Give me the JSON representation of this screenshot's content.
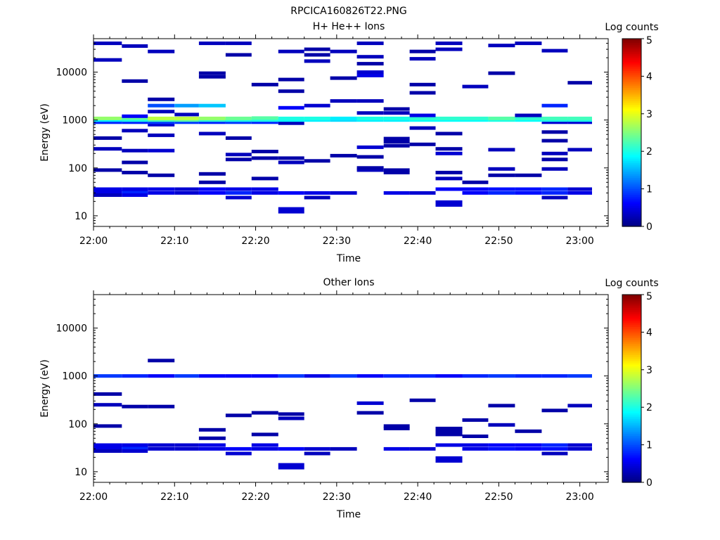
{
  "figure_title": "RPCICA160826T22.PNG",
  "chart_data": [
    {
      "type": "heatmap",
      "title": "H+ He++ Ions",
      "xlabel": "Time",
      "ylabel": "Energy (eV)",
      "x_ticks": [
        "22:00",
        "22:10",
        "22:20",
        "22:30",
        "22:40",
        "22:50",
        "23:00"
      ],
      "x_range_minutes": [
        0,
        63.5
      ],
      "y_scale": "log",
      "y_ticks": [
        10,
        100,
        1000,
        10000
      ],
      "y_range": [
        6,
        50000
      ],
      "colorbar": {
        "label": "Log counts",
        "ticks": [
          0,
          1,
          2,
          3,
          4,
          5
        ],
        "range": [
          0,
          5
        ],
        "colormap": "jet"
      },
      "time_bins_minutes": [
        0,
        3.5,
        6.7,
        10,
        13,
        16.3,
        19.5,
        22.8,
        26,
        29.2,
        32.5,
        35.8,
        39,
        42.2,
        45.5,
        48.7,
        52,
        55.3,
        58.5,
        61.5
      ],
      "cells": [
        [
          0,
          27,
          0.3
        ],
        [
          0,
          32,
          0.5
        ],
        [
          0,
          36,
          0.5
        ],
        [
          0,
          90,
          0.2
        ],
        [
          0,
          250,
          0.3
        ],
        [
          0,
          420,
          0.2
        ],
        [
          0,
          900,
          0.8
        ],
        [
          0,
          1000,
          1.8
        ],
        [
          0,
          1080,
          2.6
        ],
        [
          0,
          18000,
          0.3
        ],
        [
          0,
          40000,
          0.3
        ],
        [
          1,
          27,
          0.5
        ],
        [
          1,
          32,
          0.8
        ],
        [
          1,
          36,
          0.5
        ],
        [
          1,
          80,
          0.2
        ],
        [
          1,
          130,
          0.2
        ],
        [
          1,
          230,
          0.3
        ],
        [
          1,
          600,
          0.3
        ],
        [
          1,
          900,
          0.8
        ],
        [
          1,
          1000,
          2.0
        ],
        [
          1,
          1100,
          2.4
        ],
        [
          1,
          1200,
          0.6
        ],
        [
          1,
          6500,
          0.2
        ],
        [
          1,
          35000,
          0.3
        ],
        [
          2,
          30,
          0.5
        ],
        [
          2,
          36,
          0.5
        ],
        [
          2,
          70,
          0.2
        ],
        [
          2,
          230,
          0.4
        ],
        [
          2,
          480,
          0.3
        ],
        [
          2,
          800,
          0.4
        ],
        [
          2,
          900,
          0.9
        ],
        [
          2,
          1000,
          2.2
        ],
        [
          2,
          1080,
          2.8
        ],
        [
          2,
          1500,
          0.3
        ],
        [
          2,
          2000,
          1.0
        ],
        [
          2,
          2700,
          0.2
        ],
        [
          2,
          27000,
          0.3
        ],
        [
          3,
          30,
          0.4
        ],
        [
          3,
          36,
          0.4
        ],
        [
          3,
          900,
          0.9
        ],
        [
          3,
          1000,
          2.3
        ],
        [
          3,
          1080,
          2.8
        ],
        [
          3,
          1300,
          0.3
        ],
        [
          3,
          2000,
          1.4
        ],
        [
          4,
          30,
          0.6
        ],
        [
          4,
          36,
          0.6
        ],
        [
          4,
          50,
          0.2
        ],
        [
          4,
          75,
          0.2
        ],
        [
          4,
          520,
          0.3
        ],
        [
          4,
          900,
          0.8
        ],
        [
          4,
          1000,
          2.1
        ],
        [
          4,
          1080,
          2.6
        ],
        [
          4,
          2000,
          1.6
        ],
        [
          4,
          8000,
          0.2
        ],
        [
          4,
          9500,
          0.2
        ],
        [
          4,
          40000,
          0.3
        ],
        [
          5,
          24,
          0.4
        ],
        [
          5,
          30,
          0.8
        ],
        [
          5,
          36,
          0.5
        ],
        [
          5,
          150,
          0.2
        ],
        [
          5,
          190,
          0.3
        ],
        [
          5,
          420,
          0.2
        ],
        [
          5,
          900,
          0.9
        ],
        [
          5,
          1000,
          2.0
        ],
        [
          5,
          1080,
          2.4
        ],
        [
          5,
          23000,
          0.2
        ],
        [
          5,
          40000,
          0.3
        ],
        [
          6,
          30,
          0.5
        ],
        [
          6,
          36,
          0.5
        ],
        [
          6,
          60,
          0.2
        ],
        [
          6,
          160,
          0.2
        ],
        [
          6,
          220,
          0.2
        ],
        [
          6,
          900,
          0.8
        ],
        [
          6,
          1000,
          2.0
        ],
        [
          6,
          1100,
          2.3
        ],
        [
          6,
          5500,
          0.2
        ],
        [
          7,
          13,
          0.4
        ],
        [
          7,
          30,
          0.6
        ],
        [
          7,
          130,
          0.3
        ],
        [
          7,
          160,
          0.2
        ],
        [
          7,
          860,
          0.3
        ],
        [
          7,
          1000,
          1.9
        ],
        [
          7,
          1080,
          2.0
        ],
        [
          7,
          1800,
          0.6
        ],
        [
          7,
          4000,
          0.2
        ],
        [
          7,
          7000,
          0.2
        ],
        [
          7,
          27000,
          0.3
        ],
        [
          8,
          24,
          0.3
        ],
        [
          8,
          30,
          0.5
        ],
        [
          8,
          140,
          0.2
        ],
        [
          8,
          1000,
          1.8
        ],
        [
          8,
          1080,
          2.0
        ],
        [
          8,
          2000,
          0.4
        ],
        [
          8,
          17000,
          0.3
        ],
        [
          8,
          23000,
          0.2
        ],
        [
          8,
          30000,
          0.2
        ],
        [
          9,
          30,
          0.4
        ],
        [
          9,
          180,
          0.2
        ],
        [
          9,
          1000,
          1.7
        ],
        [
          9,
          1080,
          1.8
        ],
        [
          9,
          2500,
          0.3
        ],
        [
          9,
          7500,
          0.2
        ],
        [
          9,
          27000,
          0.3
        ],
        [
          10,
          90,
          0.3
        ],
        [
          10,
          100,
          0.2
        ],
        [
          10,
          170,
          0.2
        ],
        [
          10,
          270,
          0.4
        ],
        [
          10,
          1000,
          1.8
        ],
        [
          10,
          1080,
          2.0
        ],
        [
          10,
          1400,
          0.3
        ],
        [
          10,
          2500,
          0.3
        ],
        [
          10,
          8500,
          0.5
        ],
        [
          10,
          10000,
          0.4
        ],
        [
          10,
          15000,
          0.2
        ],
        [
          10,
          21000,
          0.3
        ],
        [
          10,
          40000,
          0.3
        ],
        [
          11,
          30,
          0.5
        ],
        [
          11,
          80,
          0.2
        ],
        [
          11,
          90,
          0.2
        ],
        [
          11,
          290,
          0.2
        ],
        [
          11,
          350,
          0.2
        ],
        [
          11,
          410,
          0.2
        ],
        [
          11,
          1000,
          1.8
        ],
        [
          11,
          1080,
          2.0
        ],
        [
          11,
          1400,
          0.3
        ],
        [
          11,
          1700,
          0.2
        ],
        [
          12,
          30,
          0.4
        ],
        [
          12,
          310,
          0.2
        ],
        [
          12,
          680,
          0.3
        ],
        [
          12,
          1000,
          1.9
        ],
        [
          12,
          1080,
          2.1
        ],
        [
          12,
          1250,
          0.5
        ],
        [
          12,
          3700,
          0.2
        ],
        [
          12,
          5500,
          0.2
        ],
        [
          12,
          19000,
          0.3
        ],
        [
          12,
          27000,
          0.2
        ],
        [
          13,
          18,
          0.4
        ],
        [
          13,
          36,
          0.6
        ],
        [
          13,
          60,
          0.3
        ],
        [
          13,
          80,
          0.2
        ],
        [
          13,
          200,
          0.4
        ],
        [
          13,
          250,
          0.2
        ],
        [
          13,
          520,
          0.2
        ],
        [
          13,
          1000,
          1.9
        ],
        [
          13,
          1080,
          2.1
        ],
        [
          13,
          30000,
          0.3
        ],
        [
          13,
          40000,
          0.3
        ],
        [
          14,
          30,
          0.6
        ],
        [
          14,
          36,
          0.6
        ],
        [
          14,
          50,
          0.2
        ],
        [
          14,
          1000,
          1.9
        ],
        [
          14,
          1080,
          2.1
        ],
        [
          14,
          5000,
          0.3
        ],
        [
          15,
          30,
          0.8
        ],
        [
          15,
          36,
          0.7
        ],
        [
          15,
          70,
          0.2
        ],
        [
          15,
          95,
          0.3
        ],
        [
          15,
          240,
          0.3
        ],
        [
          15,
          1000,
          2.0
        ],
        [
          15,
          1080,
          2.3
        ],
        [
          15,
          9500,
          0.2
        ],
        [
          15,
          36000,
          0.3
        ],
        [
          16,
          30,
          0.7
        ],
        [
          16,
          36,
          0.7
        ],
        [
          16,
          70,
          0.2
        ],
        [
          16,
          1000,
          1.9
        ],
        [
          16,
          1080,
          2.1
        ],
        [
          16,
          1250,
          0.3
        ],
        [
          16,
          40000,
          0.3
        ],
        [
          17,
          24,
          0.3
        ],
        [
          17,
          30,
          0.8
        ],
        [
          17,
          36,
          0.8
        ],
        [
          17,
          95,
          0.3
        ],
        [
          17,
          150,
          0.2
        ],
        [
          17,
          200,
          0.3
        ],
        [
          17,
          370,
          0.2
        ],
        [
          17,
          560,
          0.2
        ],
        [
          17,
          900,
          0.4
        ],
        [
          17,
          1000,
          2.0
        ],
        [
          17,
          1080,
          2.2
        ],
        [
          17,
          2000,
          0.8
        ],
        [
          17,
          28000,
          0.3
        ],
        [
          18,
          30,
          0.5
        ],
        [
          18,
          36,
          0.4
        ],
        [
          18,
          240,
          0.3
        ],
        [
          18,
          900,
          0.4
        ],
        [
          18,
          1000,
          2.0
        ],
        [
          18,
          1080,
          2.2
        ],
        [
          18,
          6000,
          0.2
        ]
      ]
    },
    {
      "type": "heatmap",
      "title": "Other Ions",
      "xlabel": "Time",
      "ylabel": "Energy (eV)",
      "x_ticks": [
        "22:00",
        "22:10",
        "22:20",
        "22:30",
        "22:40",
        "22:50",
        "23:00"
      ],
      "x_range_minutes": [
        0,
        63.5
      ],
      "y_scale": "log",
      "y_ticks": [
        10,
        100,
        1000,
        10000
      ],
      "y_range": [
        6,
        50000
      ],
      "colorbar": {
        "label": "Log counts",
        "ticks": [
          0,
          1,
          2,
          3,
          4,
          5
        ],
        "range": [
          0,
          5
        ],
        "colormap": "jet"
      },
      "time_bins_minutes": [
        0,
        3.5,
        6.7,
        10,
        13,
        16.3,
        19.5,
        22.8,
        26,
        29.2,
        32.5,
        35.8,
        39,
        42.2,
        45.5,
        48.7,
        52,
        55.3,
        58.5,
        61.5
      ],
      "cells": [
        [
          0,
          27,
          0.3
        ],
        [
          0,
          32,
          0.5
        ],
        [
          0,
          36,
          0.5
        ],
        [
          0,
          90,
          0.2
        ],
        [
          0,
          250,
          0.3
        ],
        [
          0,
          420,
          0.2
        ],
        [
          0,
          1000,
          0.9
        ],
        [
          1,
          27,
          0.4
        ],
        [
          1,
          32,
          0.8
        ],
        [
          1,
          36,
          0.5
        ],
        [
          1,
          230,
          0.2
        ],
        [
          1,
          1000,
          0.8
        ],
        [
          2,
          30,
          0.4
        ],
        [
          2,
          36,
          0.4
        ],
        [
          2,
          230,
          0.2
        ],
        [
          2,
          1000,
          0.6
        ],
        [
          2,
          2100,
          0.2
        ],
        [
          3,
          30,
          0.4
        ],
        [
          3,
          36,
          0.4
        ],
        [
          3,
          1000,
          0.9
        ],
        [
          4,
          30,
          0.5
        ],
        [
          4,
          36,
          0.5
        ],
        [
          4,
          50,
          0.2
        ],
        [
          4,
          75,
          0.2
        ],
        [
          4,
          1000,
          0.6
        ],
        [
          5,
          24,
          0.4
        ],
        [
          5,
          30,
          0.6
        ],
        [
          5,
          150,
          0.2
        ],
        [
          5,
          1000,
          0.6
        ],
        [
          6,
          30,
          0.5
        ],
        [
          6,
          36,
          0.5
        ],
        [
          6,
          60,
          0.2
        ],
        [
          6,
          170,
          0.2
        ],
        [
          6,
          1000,
          0.6
        ],
        [
          7,
          13,
          0.4
        ],
        [
          7,
          30,
          0.6
        ],
        [
          7,
          130,
          0.3
        ],
        [
          7,
          160,
          0.2
        ],
        [
          7,
          1000,
          0.9
        ],
        [
          8,
          24,
          0.3
        ],
        [
          8,
          30,
          0.4
        ],
        [
          8,
          1000,
          0.5
        ],
        [
          9,
          30,
          0.3
        ],
        [
          9,
          1000,
          0.9
        ],
        [
          10,
          170,
          0.2
        ],
        [
          10,
          270,
          0.4
        ],
        [
          10,
          1000,
          0.6
        ],
        [
          11,
          30,
          0.5
        ],
        [
          11,
          80,
          0.2
        ],
        [
          11,
          90,
          0.2
        ],
        [
          11,
          1000,
          0.8
        ],
        [
          12,
          30,
          0.4
        ],
        [
          12,
          310,
          0.2
        ],
        [
          12,
          1000,
          0.8
        ],
        [
          13,
          18,
          0.4
        ],
        [
          13,
          36,
          0.5
        ],
        [
          13,
          60,
          0.2
        ],
        [
          13,
          70,
          0.2
        ],
        [
          13,
          80,
          0.2
        ],
        [
          13,
          1000,
          0.6
        ],
        [
          14,
          30,
          0.5
        ],
        [
          14,
          36,
          0.5
        ],
        [
          14,
          55,
          0.2
        ],
        [
          14,
          120,
          0.2
        ],
        [
          14,
          1000,
          0.8
        ],
        [
          15,
          30,
          0.7
        ],
        [
          15,
          36,
          0.6
        ],
        [
          15,
          95,
          0.3
        ],
        [
          15,
          240,
          0.2
        ],
        [
          15,
          1000,
          0.9
        ],
        [
          16,
          30,
          0.6
        ],
        [
          16,
          36,
          0.6
        ],
        [
          16,
          70,
          0.2
        ],
        [
          16,
          1000,
          0.8
        ],
        [
          17,
          24,
          0.3
        ],
        [
          17,
          30,
          0.7
        ],
        [
          17,
          36,
          0.8
        ],
        [
          17,
          190,
          0.2
        ],
        [
          17,
          1000,
          0.8
        ],
        [
          18,
          30,
          0.4
        ],
        [
          18,
          36,
          0.4
        ],
        [
          18,
          240,
          0.3
        ],
        [
          18,
          1000,
          0.9
        ]
      ]
    }
  ]
}
